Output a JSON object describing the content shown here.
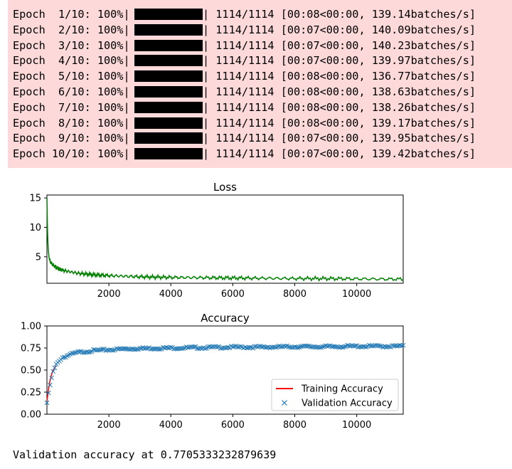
{
  "progress": [
    {
      "epoch": "Epoch  1/10: 100%|",
      "rest": "| 1114/1114 [00:08<00:00, 139.14batches/s]",
      "fraction": 1.0
    },
    {
      "epoch": "Epoch  2/10: 100%|",
      "rest": "| 1114/1114 [00:07<00:00, 140.09batches/s]",
      "fraction": 1.0
    },
    {
      "epoch": "Epoch  3/10: 100%|",
      "rest": "| 1114/1114 [00:07<00:00, 140.23batches/s]",
      "fraction": 1.0
    },
    {
      "epoch": "Epoch  4/10: 100%|",
      "rest": "| 1114/1114 [00:07<00:00, 139.97batches/s]",
      "fraction": 1.0
    },
    {
      "epoch": "Epoch  5/10: 100%|",
      "rest": "| 1114/1114 [00:08<00:00, 136.77batches/s]",
      "fraction": 1.0
    },
    {
      "epoch": "Epoch  6/10: 100%|",
      "rest": "| 1114/1114 [00:08<00:00, 138.63batches/s]",
      "fraction": 1.0
    },
    {
      "epoch": "Epoch  7/10: 100%|",
      "rest": "| 1114/1114 [00:08<00:00, 138.26batches/s]",
      "fraction": 1.0
    },
    {
      "epoch": "Epoch  8/10: 100%|",
      "rest": "| 1114/1114 [00:08<00:00, 139.17batches/s]",
      "fraction": 1.0
    },
    {
      "epoch": "Epoch  9/10: 100%|",
      "rest": "| 1114/1114 [00:07<00:00, 139.95batches/s]",
      "fraction": 1.0
    },
    {
      "epoch": "Epoch 10/10: 100%|",
      "rest": "| 1114/1114 [00:07<00:00, 139.42batches/s]",
      "fraction": 1.0
    }
  ],
  "colors": {
    "stderr_bg": "#fdd9d9",
    "loss_line": "#008000",
    "train_line": "#ff0000",
    "val_marker": "#1f77b4"
  },
  "chart_data": [
    {
      "type": "line",
      "title": "Loss",
      "xlabel": "",
      "ylabel": "",
      "xlim": [
        0,
        11500
      ],
      "ylim": [
        0.5,
        15.5
      ],
      "xticks": [
        "2000",
        "4000",
        "6000",
        "8000",
        "10000"
      ],
      "yticks": [
        "5",
        "10",
        "15"
      ],
      "grid": false,
      "series": [
        {
          "color": "#008000",
          "x": [
            0,
            20,
            50,
            100,
            200,
            300,
            400,
            600,
            800,
            1000,
            1500,
            2000,
            2500,
            3000,
            4000,
            5000,
            6000,
            7000,
            8000,
            9000,
            10000,
            11000,
            11500
          ],
          "y": [
            15,
            9,
            5.5,
            4.2,
            3.6,
            3.2,
            2.9,
            2.6,
            2.4,
            2.2,
            1.95,
            1.8,
            1.7,
            1.6,
            1.5,
            1.45,
            1.4,
            1.35,
            1.3,
            1.3,
            1.25,
            1.2,
            1.2
          ]
        }
      ]
    },
    {
      "type": "line",
      "title": "Accuracy",
      "xlabel": "",
      "ylabel": "",
      "xlim": [
        0,
        11500
      ],
      "ylim": [
        0.0,
        1.0
      ],
      "xticks": [
        "2000",
        "4000",
        "6000",
        "8000",
        "10000"
      ],
      "yticks": [
        "0.00",
        "0.25",
        "0.50",
        "0.75",
        "1.00"
      ],
      "grid": false,
      "legend": "lower-right",
      "series": [
        {
          "name": "Training Accuracy",
          "color": "#ff0000",
          "marker": "line",
          "x": [
            0,
            50,
            100,
            150,
            200,
            300
          ],
          "y": [
            0.15,
            0.28,
            0.38,
            0.45,
            0.5,
            0.55
          ]
        },
        {
          "name": "Validation Accuracy",
          "color": "#1f77b4",
          "marker": "x",
          "x": [
            0,
            100,
            200,
            300,
            400,
            500,
            700,
            1000,
            1500,
            2000,
            2500,
            3000,
            4000,
            5000,
            6000,
            7000,
            8000,
            9000,
            10000,
            11000,
            11500
          ],
          "y": [
            0.13,
            0.33,
            0.48,
            0.56,
            0.61,
            0.64,
            0.67,
            0.7,
            0.72,
            0.73,
            0.74,
            0.745,
            0.75,
            0.755,
            0.76,
            0.76,
            0.765,
            0.765,
            0.77,
            0.77,
            0.77
          ]
        }
      ]
    }
  ],
  "output_text": "Validation accuracy at 0.7705333232879639"
}
